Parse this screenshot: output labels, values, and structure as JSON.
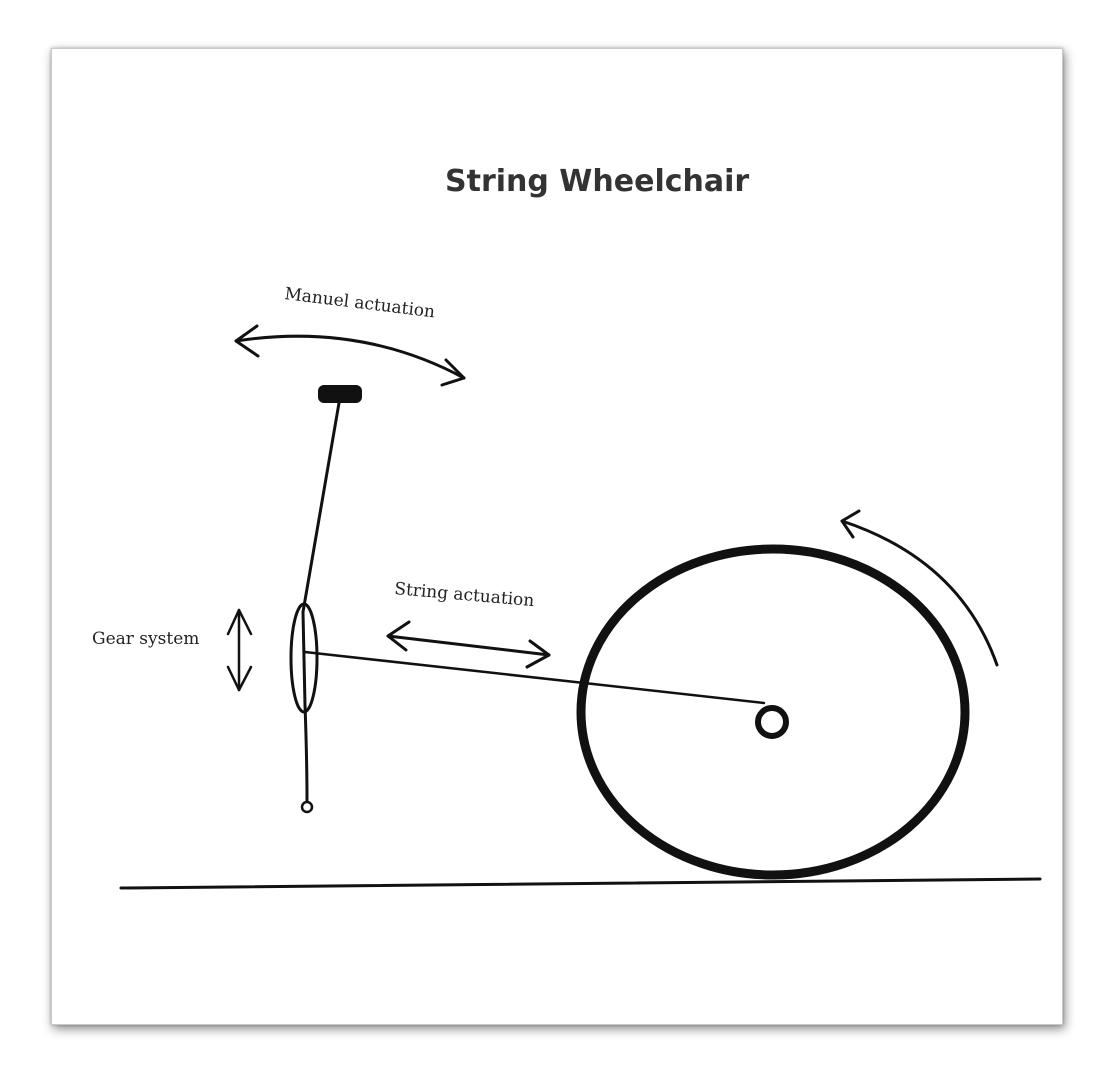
{
  "diagram": {
    "title": "String Wheelchair",
    "labels": {
      "manual_actuation": "Manuel actuation",
      "string_actuation": "String actuation",
      "gear_system": "Gear system"
    },
    "colors": {
      "ink": "#111111",
      "title": "#333333",
      "background": "#ffffff"
    }
  }
}
